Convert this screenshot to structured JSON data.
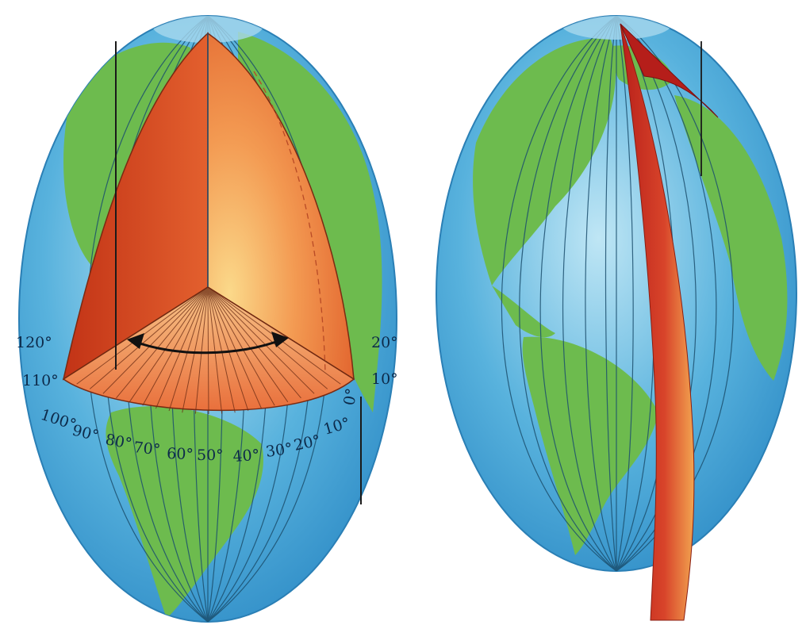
{
  "figure": {
    "left_globe": {
      "labels_upper_left": [
        "120°",
        "110°"
      ],
      "labels_upper_right": [
        "20°",
        "10°"
      ],
      "labels_bottom": [
        "100°",
        "90°",
        "80°",
        "70°",
        "60°",
        "50°",
        "40°",
        "30°",
        "20°",
        "10°",
        "0°"
      ]
    },
    "colors": {
      "ocean": "#4aa8d8",
      "land": "#6dbb4e",
      "wedge_dark": "#c8391c",
      "wedge_light": "#f6b060",
      "meridian": "#1c4f6e"
    }
  }
}
